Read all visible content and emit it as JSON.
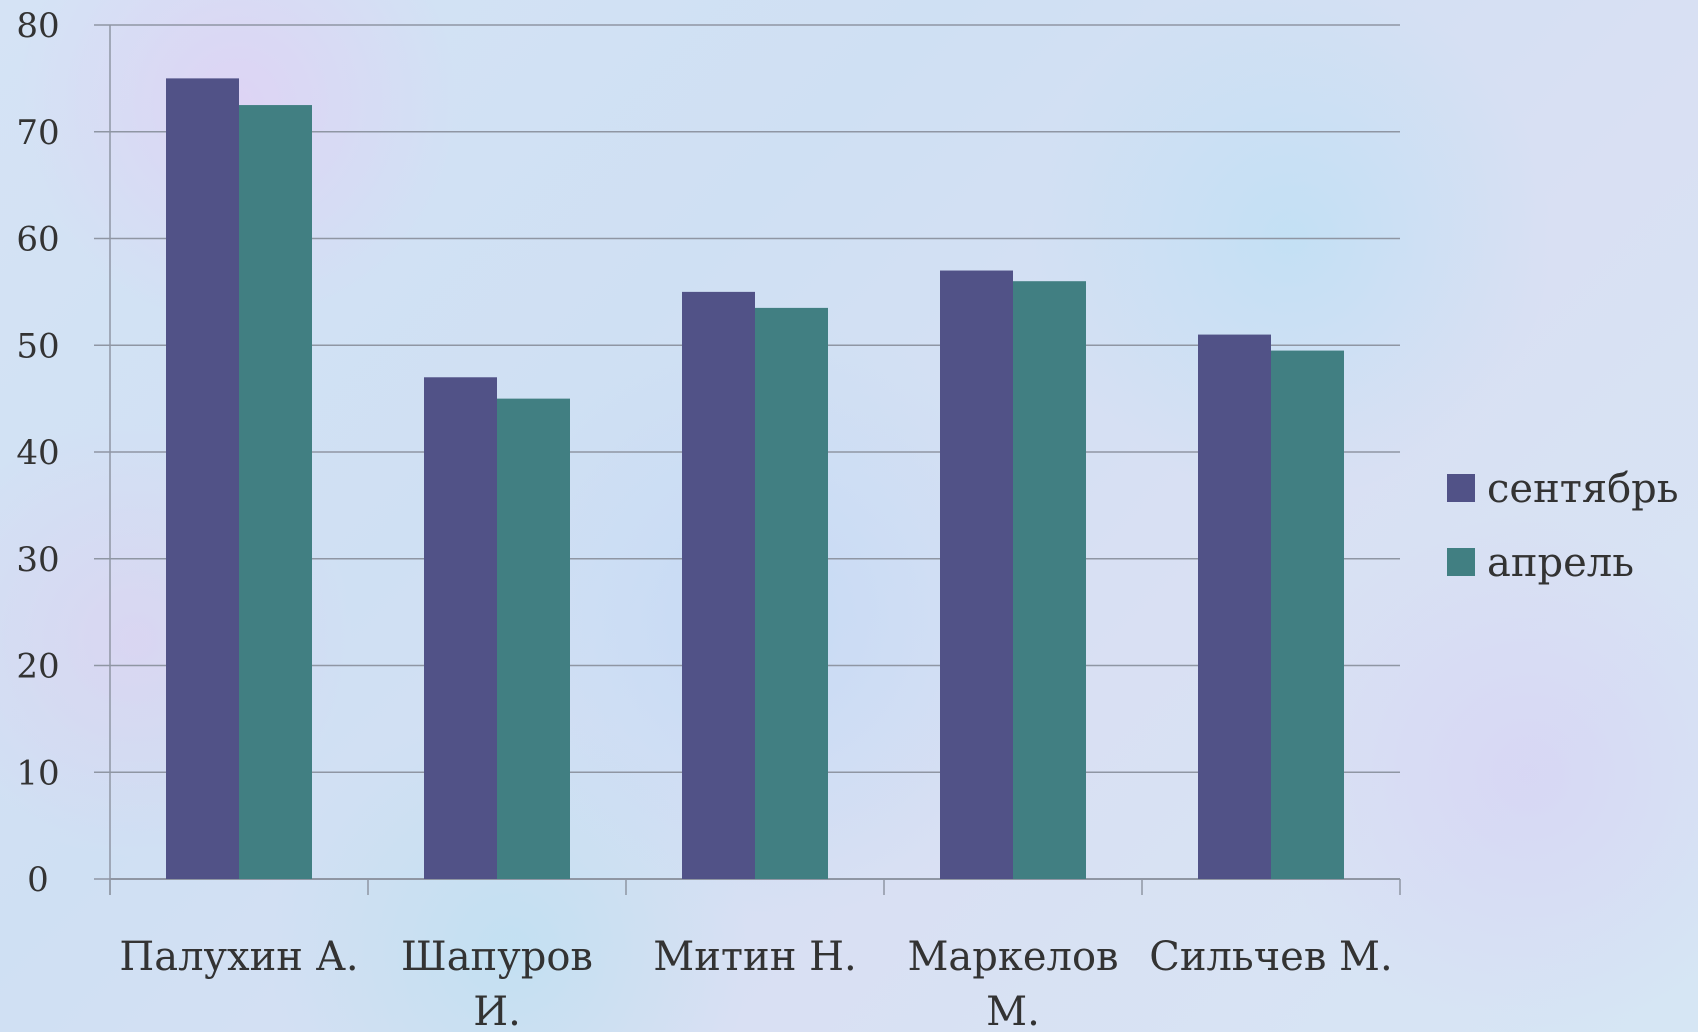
{
  "chart_data": {
    "type": "bar",
    "categories": [
      [
        "Палухин А."
      ],
      [
        "Шапуров",
        "И."
      ],
      [
        "Митин Н."
      ],
      [
        "Маркелов",
        "М."
      ],
      [
        "Сильчев М."
      ]
    ],
    "series": [
      {
        "name": "сентябрь",
        "color": "#515287",
        "values": [
          75,
          47,
          55,
          57,
          51
        ]
      },
      {
        "name": "апрель",
        "color": "#417f82",
        "values": [
          72.5,
          45,
          53.5,
          56,
          49.5
        ]
      }
    ],
    "ylim": [
      0,
      80
    ],
    "yticks": [
      "0",
      "10",
      "20",
      "30",
      "40",
      "50",
      "60",
      "70",
      "80"
    ],
    "grid": true,
    "legend_position": "right"
  }
}
